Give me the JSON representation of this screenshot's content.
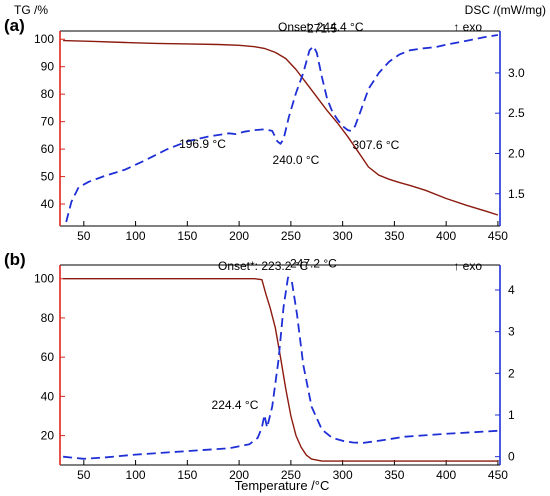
{
  "colors": {
    "tg": "#8b1a0f",
    "dsc": "#1f2fd6",
    "axis_tg": "#e0261c",
    "axis_dsc": "#1f2fd6",
    "frame": "#000000"
  },
  "shared": {
    "xlabel": "Temperature /°C"
  },
  "chart_data": [
    {
      "id": "a",
      "panel_label": "(a)",
      "type": "line",
      "title": "",
      "left_axis_label": "TG /%",
      "right_axis_label": "DSC /(mW/mg)",
      "exo_label": "↑ exo",
      "onset_label": "Onset: 244.4 °C",
      "xlim": [
        27,
        452
      ],
      "ylim_left": [
        32,
        103
      ],
      "ylim_right": [
        1.1,
        3.52
      ],
      "x_ticks": [
        50,
        100,
        150,
        200,
        250,
        300,
        350,
        400,
        450
      ],
      "x_tick_labels": [
        "50",
        "100",
        "150",
        "200",
        "250",
        "300",
        "350",
        "400",
        "450"
      ],
      "y_left_ticks": [
        40,
        50,
        60,
        70,
        80,
        90,
        100
      ],
      "y_left_tick_labels": [
        "40",
        "50",
        "60",
        "70",
        "80",
        "90",
        "100"
      ],
      "y_right_ticks": [
        1.5,
        2.0,
        2.5,
        3.0
      ],
      "y_right_tick_labels": [
        "1.5",
        "2.0",
        "2.5",
        "3.0"
      ],
      "series": [
        {
          "role": "TG",
          "axis": "left",
          "style": "solid",
          "x": [
            30,
            60,
            90,
            120,
            150,
            180,
            200,
            215,
            225,
            235,
            245,
            255,
            265,
            275,
            285,
            295,
            305,
            315,
            325,
            335,
            345,
            355,
            365,
            380,
            400,
            420,
            440,
            450
          ],
          "y": [
            99.5,
            99.2,
            98.8,
            98.5,
            98.3,
            98.1,
            97.8,
            97.3,
            96.6,
            95.2,
            93.0,
            89.0,
            84.0,
            79.0,
            74.0,
            69.5,
            64.5,
            59.0,
            53.5,
            50.5,
            49.0,
            47.8,
            46.8,
            45.0,
            42.0,
            39.5,
            37.2,
            36.0
          ]
        },
        {
          "role": "DSC",
          "axis": "right",
          "style": "dashed",
          "x": [
            33,
            38,
            45,
            55,
            70,
            90,
            110,
            130,
            150,
            170,
            190,
            197,
            205,
            215,
            225,
            232,
            237,
            240,
            243,
            248,
            255,
            262,
            268,
            272,
            275,
            280,
            285,
            290,
            295,
            300,
            305,
            308,
            312,
            318,
            325,
            335,
            345,
            355,
            365,
            375,
            390,
            400,
            420,
            440,
            450
          ],
          "y": [
            1.15,
            1.4,
            1.58,
            1.65,
            1.72,
            1.8,
            1.92,
            2.05,
            2.15,
            2.21,
            2.25,
            2.24,
            2.27,
            2.29,
            2.3,
            2.28,
            2.15,
            2.12,
            2.18,
            2.45,
            2.75,
            3.0,
            3.28,
            3.33,
            3.25,
            2.95,
            2.68,
            2.52,
            2.42,
            2.34,
            2.29,
            2.28,
            2.34,
            2.55,
            2.8,
            3.0,
            3.14,
            3.23,
            3.28,
            3.3,
            3.32,
            3.35,
            3.4,
            3.45,
            3.47
          ]
        }
      ],
      "annotations": [
        {
          "text": "271.5",
          "x": 271.5,
          "y_right": 3.33
        },
        {
          "text": "196.9 °C",
          "x": 196.9,
          "y_right": 2.24
        },
        {
          "text": "240.0 °C",
          "x": 240.0,
          "y_right": 2.12
        },
        {
          "text": "307.6 °C",
          "x": 307.6,
          "y_right": 2.28
        }
      ]
    },
    {
      "id": "b",
      "panel_label": "(b)",
      "type": "line",
      "title": "",
      "left_axis_label": "",
      "right_axis_label": "",
      "exo_label": "↑ exo",
      "onset_label": "Onset*: 223.2 °C",
      "xlim": [
        27,
        452
      ],
      "ylim_left": [
        5,
        107
      ],
      "ylim_right": [
        -0.2,
        4.6
      ],
      "x_ticks": [
        50,
        100,
        150,
        200,
        250,
        300,
        350,
        400,
        450
      ],
      "x_tick_labels": [
        "50",
        "100",
        "150",
        "200",
        "250",
        "300",
        "350",
        "400",
        "450"
      ],
      "y_left_ticks": [
        20,
        40,
        60,
        80,
        100
      ],
      "y_left_tick_labels": [
        "20",
        "40",
        "60",
        "80",
        "100"
      ],
      "y_right_ticks": [
        0,
        1,
        2,
        3,
        4
      ],
      "y_right_tick_labels": [
        "0",
        "1",
        "2",
        "3",
        "4"
      ],
      "series": [
        {
          "role": "TG",
          "axis": "left",
          "style": "solid",
          "x": [
            30,
            100,
            150,
            200,
            215,
            222,
            226,
            230,
            235,
            240,
            245,
            250,
            255,
            260,
            265,
            270,
            280,
            300,
            350,
            400,
            450
          ],
          "y": [
            100.0,
            100.0,
            100.0,
            100.0,
            100.0,
            99.5,
            92.0,
            85.0,
            75.0,
            60.0,
            44.0,
            30.0,
            20.0,
            14.0,
            10.0,
            8.0,
            7.0,
            7.0,
            7.0,
            7.0,
            7.0
          ]
        },
        {
          "role": "DSC",
          "axis": "right",
          "style": "dashed",
          "x": [
            30,
            50,
            70,
            100,
            130,
            160,
            190,
            210,
            218,
            222,
            224.4,
            227,
            232,
            238,
            243,
            247.2,
            251,
            256,
            262,
            270,
            280,
            290,
            300,
            310,
            320,
            340,
            360,
            400,
            450
          ],
          "y": [
            0.0,
            -0.05,
            -0.02,
            0.05,
            0.1,
            0.15,
            0.2,
            0.3,
            0.45,
            0.7,
            1.0,
            0.7,
            1.2,
            2.3,
            3.6,
            4.3,
            4.2,
            3.4,
            2.2,
            1.2,
            0.65,
            0.45,
            0.38,
            0.34,
            0.33,
            0.4,
            0.48,
            0.55,
            0.62
          ]
        }
      ],
      "annotations": [
        {
          "text": "247.2 °C",
          "x": 247.2,
          "y_right": 4.3
        },
        {
          "text": "224.4 °C",
          "x": 224.4,
          "y_right": 1.0
        }
      ]
    }
  ]
}
